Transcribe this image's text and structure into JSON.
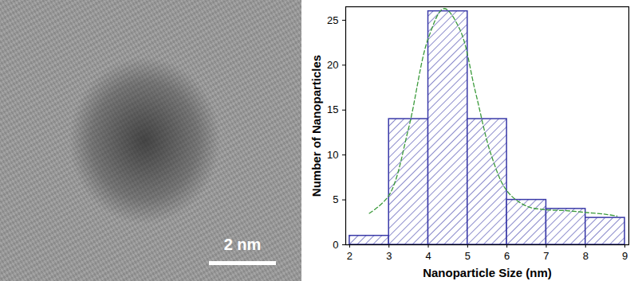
{
  "image": {
    "scale_bar": "2 nm"
  },
  "chart_data": {
    "type": "histogram",
    "x_label": "Nanoparticle Size (nm)",
    "y_label": "Number of Nanoparticles",
    "bins": [
      2,
      3,
      4,
      5,
      6,
      7,
      8,
      9
    ],
    "values": [
      1,
      14,
      26,
      14,
      5,
      4,
      3
    ],
    "color": "#3a3aa8",
    "xlim": [
      1.9,
      9.1
    ],
    "xticks": [
      2,
      3,
      4,
      5,
      6,
      7,
      8,
      9
    ],
    "ylim": [
      0,
      26.5
    ],
    "yticks": [
      0,
      5,
      10,
      15,
      20,
      25
    ],
    "grid": false,
    "fit": {
      "type": "line",
      "line_style": "dashed",
      "color": "#3a9a3a",
      "x": [
        2.5,
        3,
        3.5,
        4,
        4.4,
        4.8,
        5.2,
        5.6,
        6,
        6.5,
        7,
        7.5,
        8,
        8.5,
        8.8
      ],
      "values": [
        3.5,
        5.5,
        13,
        23,
        26.3,
        24,
        17,
        10,
        6,
        4.3,
        3.9,
        3.8,
        3.6,
        3.4,
        3.2
      ]
    }
  }
}
